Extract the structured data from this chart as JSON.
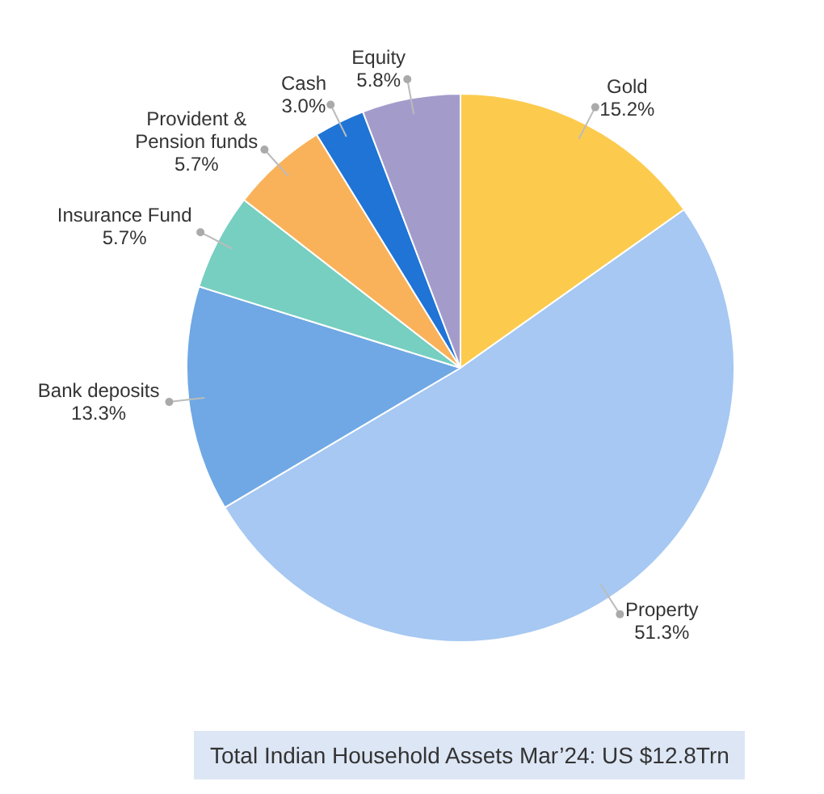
{
  "chart_data": {
    "type": "pie",
    "categories": [
      "Gold",
      "Property",
      "Bank deposits",
      "Insurance Fund",
      "Provident & Pension funds",
      "Cash",
      "Equity"
    ],
    "values": [
      15.2,
      51.3,
      13.3,
      5.7,
      5.7,
      3.0,
      5.8
    ],
    "value_labels": [
      "15.2%",
      "51.3%",
      "13.3%",
      "5.7%",
      "5.7%",
      "3.0%",
      "5.8%"
    ],
    "colors": [
      "#fccb4e",
      "#a6c8f2",
      "#6fa8e4",
      "#76cfc0",
      "#f9b25a",
      "#1f74d6",
      "#a39ccb"
    ],
    "legend": false,
    "annotations": [
      "Total Indian Household Assets Mar’24: US $12.8Trn"
    ]
  }
}
